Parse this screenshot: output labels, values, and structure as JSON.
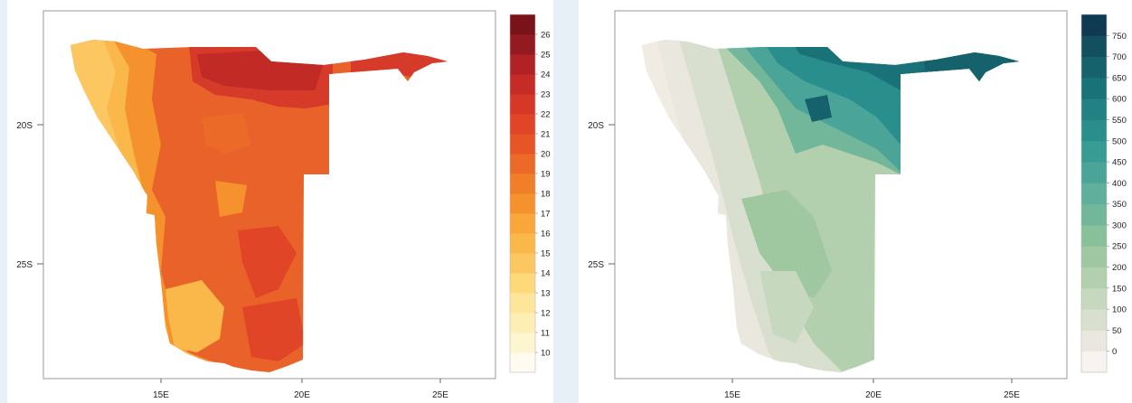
{
  "maps": [
    {
      "id": "temperature",
      "legend": {
        "labels": [
          "10",
          "11",
          "12",
          "13",
          "14",
          "15",
          "16",
          "17",
          "18",
          "19",
          "20",
          "21",
          "22",
          "23",
          "24",
          "25",
          "26"
        ],
        "colors": [
          "#fffbf0",
          "#fdf4d0",
          "#fdeeb3",
          "#fde699",
          "#fdd97a",
          "#fcc760",
          "#fbb84a",
          "#f9a63a",
          "#f5922d",
          "#f17e28",
          "#ec6a27",
          "#e65526",
          "#df4526",
          "#d63827",
          "#c52b27",
          "#b02226",
          "#941a22",
          "#7a1219"
        ]
      },
      "axes": {
        "x_ticks": [
          "15E",
          "20E",
          "25E"
        ],
        "y_ticks": [
          "20S",
          "25S"
        ]
      }
    },
    {
      "id": "precipitation",
      "legend": {
        "labels": [
          "0",
          "50",
          "100",
          "150",
          "200",
          "250",
          "300",
          "350",
          "400",
          "450",
          "500",
          "550",
          "600",
          "650",
          "700",
          "750"
        ],
        "colors": [
          "#f8f2f0",
          "#e9e7de",
          "#d9dfcf",
          "#c6d8be",
          "#b3d0ae",
          "#9fc8a0",
          "#88c09a",
          "#72b79a",
          "#5eaf9b",
          "#4aa598",
          "#389b94",
          "#2a8e8c",
          "#218183",
          "#1a7279",
          "#15626d",
          "#12505f",
          "#0f3a52"
        ]
      },
      "axes": {
        "x_ticks": [
          "15E",
          "20E",
          "25E"
        ],
        "y_ticks": [
          "20S",
          "25S"
        ]
      }
    }
  ]
}
